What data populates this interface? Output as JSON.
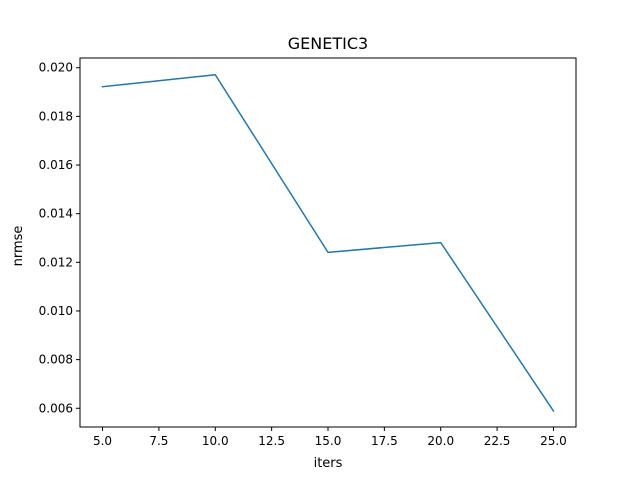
{
  "chart_data": {
    "type": "line",
    "title": "GENETIC3",
    "xlabel": "iters",
    "ylabel": "nrmse",
    "x": [
      5,
      10,
      15,
      20,
      25
    ],
    "series": [
      {
        "values": [
          0.01922,
          0.01971,
          0.01241,
          0.01281,
          0.00589
        ],
        "color": "#1f77b4"
      }
    ],
    "xlim": [
      4,
      26
    ],
    "ylim": [
      0.00523,
      0.0204
    ],
    "xticks": [
      5,
      7.5,
      10,
      12.5,
      15,
      17.5,
      20,
      22.5,
      25
    ],
    "xtick_labels": [
      "5.0",
      "7.5",
      "10.0",
      "12.5",
      "15.0",
      "17.5",
      "20.0",
      "22.5",
      "25.0"
    ],
    "yticks": [
      0.006,
      0.008,
      0.01,
      0.012,
      0.014,
      0.016,
      0.018,
      0.02
    ],
    "ytick_labels": [
      "0.006",
      "0.008",
      "0.010",
      "0.012",
      "0.014",
      "0.016",
      "0.018",
      "0.020"
    ],
    "grid": false,
    "legend": "none"
  }
}
